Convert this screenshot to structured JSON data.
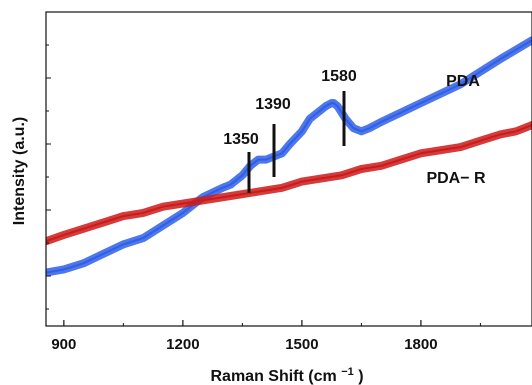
{
  "chart_data": {
    "type": "line",
    "xlabel": "Raman Shift (cm",
    "xlabel_sup": "−1",
    "xlabel_suffix": ")",
    "ylabel": "Intensity (a.u.)",
    "xlim": [
      855,
      2080
    ],
    "ylim": [
      0,
      100
    ],
    "x_ticks": [
      900,
      1200,
      1500,
      1800
    ],
    "x_tick_labels": [
      "900",
      "1200",
      "1500",
      "1800"
    ],
    "grid": false,
    "legend": "none",
    "series": [
      {
        "name": "PDA",
        "color": "#2f5fe8",
        "x": [
          855,
          900,
          950,
          1000,
          1050,
          1100,
          1150,
          1200,
          1250,
          1300,
          1320,
          1350,
          1370,
          1390,
          1410,
          1430,
          1450,
          1470,
          1500,
          1520,
          1540,
          1560,
          1575,
          1580,
          1590,
          1610,
          1630,
          1650,
          1670,
          1700,
          1750,
          1800,
          1850,
          1900,
          1950,
          2000,
          2040,
          2080
        ],
        "values": [
          17,
          18,
          20,
          23,
          26,
          28,
          32,
          36,
          41,
          44,
          45,
          48,
          51,
          53,
          53,
          54,
          55,
          58,
          62,
          66,
          68,
          70,
          71,
          71,
          70,
          66,
          63,
          62,
          63,
          65,
          68,
          71,
          74,
          77,
          81,
          85,
          88,
          91
        ]
      },
      {
        "name": "PDA− R",
        "color": "#cc1a1a",
        "x": [
          855,
          900,
          950,
          1000,
          1050,
          1100,
          1150,
          1200,
          1250,
          1300,
          1350,
          1400,
          1450,
          1500,
          1550,
          1600,
          1650,
          1700,
          1750,
          1800,
          1850,
          1900,
          1950,
          2000,
          2040,
          2080
        ],
        "values": [
          27,
          29,
          31,
          33,
          35,
          36,
          38,
          39,
          40,
          41,
          42,
          43,
          44,
          46,
          47,
          48,
          50,
          51,
          53,
          55,
          56,
          57,
          59,
          61,
          62,
          64
        ]
      }
    ],
    "annotations": [
      {
        "label": "1350",
        "x": 1350
      },
      {
        "label": "1390",
        "x": 1390
      },
      {
        "label": "1580",
        "x": 1580
      }
    ],
    "series_labels": [
      "PDA",
      "PDA− R"
    ]
  }
}
